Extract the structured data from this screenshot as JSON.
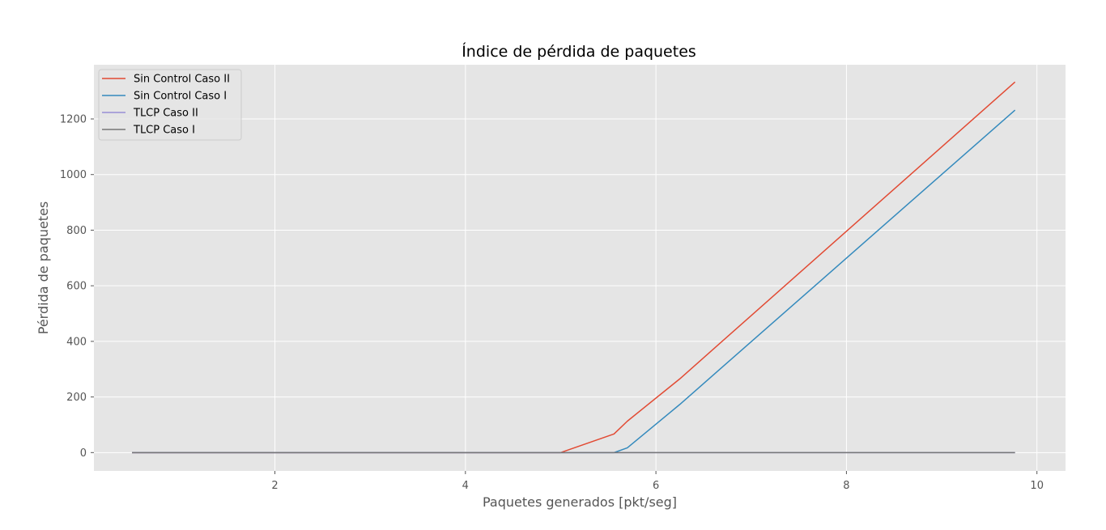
{
  "chart_data": {
    "type": "line",
    "title": "Índice de pérdida de paquetes",
    "xlabel": "Paquetes generados [pkt/seg]",
    "ylabel": "Pérdida de paquetes",
    "xlim": [
      0.1,
      10.3
    ],
    "ylim": [
      -66,
      1395
    ],
    "xticks": [
      2,
      4,
      6,
      8,
      10
    ],
    "yticks": [
      0,
      200,
      400,
      600,
      800,
      1000,
      1200
    ],
    "grid": true,
    "legend_position": "upper-left",
    "style": "ggplot",
    "series": [
      {
        "name": "Sin Control Caso II",
        "color": "#E24A33",
        "points": [
          [
            0.5,
            0
          ],
          [
            5.0,
            0
          ],
          [
            5.56,
            67
          ],
          [
            5.7,
            113
          ],
          [
            6.25,
            265
          ],
          [
            9.77,
            1333
          ]
        ]
      },
      {
        "name": "Sin Control Caso I",
        "color": "#348ABD",
        "points": [
          [
            0.5,
            0
          ],
          [
            5.56,
            0
          ],
          [
            5.7,
            17
          ],
          [
            6.25,
            173
          ],
          [
            9.77,
            1232
          ]
        ]
      },
      {
        "name": "TLCP Caso II",
        "color": "#988ED5",
        "points": [
          [
            0.5,
            0
          ],
          [
            9.77,
            0
          ]
        ]
      },
      {
        "name": "TLCP Caso I",
        "color": "#777777",
        "points": [
          [
            0.5,
            0
          ],
          [
            9.77,
            0
          ]
        ]
      }
    ]
  }
}
